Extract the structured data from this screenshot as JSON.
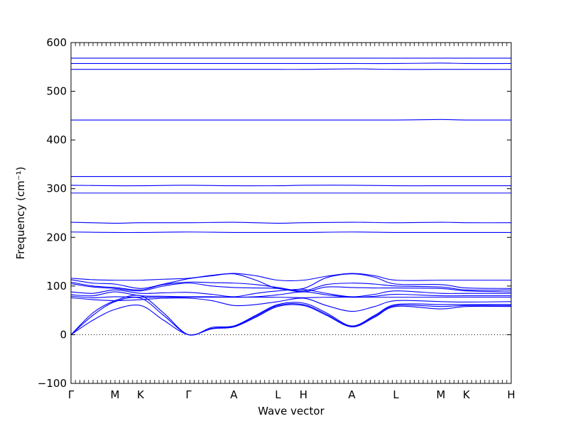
{
  "chart_data": {
    "type": "line",
    "xlabel": "Wave vector",
    "ylabel": "Frequency (cm⁻¹)",
    "ylim": [
      -100,
      600
    ],
    "xlim": [
      0,
      10
    ],
    "y_ticks": [
      -100,
      0,
      100,
      200,
      300,
      400,
      500,
      600
    ],
    "x_ticks": [
      {
        "label": "Γ",
        "x": 0
      },
      {
        "label": "M",
        "x": 1
      },
      {
        "label": "K",
        "x": 1.58
      },
      {
        "label": "Γ",
        "x": 2.67
      },
      {
        "label": "A",
        "x": 3.7
      },
      {
        "label": "L",
        "x": 4.7
      },
      {
        "label": "H",
        "x": 5.28
      },
      {
        "label": "A",
        "x": 6.38
      },
      {
        "label": "L",
        "x": 7.38
      },
      {
        "label": "M",
        "x": 8.4
      },
      {
        "label": "K",
        "x": 8.98
      },
      {
        "label": "H",
        "x": 10
      }
    ],
    "zero_line": {
      "y": 0,
      "style": "dotted"
    },
    "line_color": "#0000ff",
    "series": [
      {
        "x": [
          0,
          1,
          1.58,
          2.67,
          3.7,
          4.7,
          5.28,
          6.38,
          7.38,
          8.4,
          8.98,
          10
        ],
        "y": [
          568,
          568,
          568,
          568,
          568,
          568,
          568,
          568,
          568,
          568,
          568,
          568
        ]
      },
      {
        "x": [
          0,
          1,
          1.58,
          2.67,
          3.7,
          4.7,
          5.28,
          6.38,
          7.38,
          8.4,
          8.98,
          10
        ],
        "y": [
          557,
          557,
          557,
          557,
          557,
          557,
          557,
          557,
          557,
          558,
          557,
          557
        ]
      },
      {
        "x": [
          0,
          1,
          1.58,
          2.67,
          3.7,
          4.7,
          5.28,
          6.38,
          7.38,
          8.4,
          8.98,
          10
        ],
        "y": [
          545,
          545,
          545,
          545,
          545,
          545,
          545,
          546,
          545,
          545,
          545,
          545
        ]
      },
      {
        "x": [
          0,
          1,
          1.58,
          2.67,
          3.7,
          4.7,
          5.28,
          6.38,
          7.38,
          8.4,
          8.98,
          10
        ],
        "y": [
          441,
          441,
          441,
          441,
          441,
          441,
          441,
          441,
          441,
          442,
          441,
          441
        ]
      },
      {
        "x": [
          0,
          1,
          1.58,
          2.67,
          3.7,
          4.7,
          5.28,
          6.38,
          7.38,
          8.4,
          8.98,
          10
        ],
        "y": [
          325,
          325,
          325,
          325,
          325,
          325,
          325,
          325,
          325,
          325,
          325,
          325
        ]
      },
      {
        "x": [
          0,
          1,
          1.58,
          2.67,
          3.7,
          4.7,
          5.28,
          6.38,
          7.38,
          8.4,
          8.98,
          10
        ],
        "y": [
          307,
          306,
          306,
          307,
          306,
          306,
          307,
          307,
          306,
          306,
          306,
          306
        ]
      },
      {
        "x": [
          0,
          1,
          1.58,
          2.67,
          3.7,
          4.7,
          5.28,
          6.38,
          7.38,
          8.4,
          8.98,
          10
        ],
        "y": [
          291,
          291,
          291,
          291,
          291,
          291,
          291,
          291,
          291,
          291,
          291,
          291
        ]
      },
      {
        "x": [
          0,
          1,
          1.58,
          2.67,
          3.7,
          4.7,
          5.28,
          6.38,
          7.38,
          8.4,
          8.98,
          10
        ],
        "y": [
          231,
          229,
          230,
          230,
          231,
          229,
          230,
          231,
          230,
          231,
          230,
          230
        ]
      },
      {
        "x": [
          0,
          1,
          1.58,
          2.67,
          3.7,
          4.7,
          5.28,
          6.38,
          7.38,
          8.4,
          8.98,
          10
        ],
        "y": [
          211,
          210,
          210,
          211,
          210,
          210,
          210,
          211,
          210,
          210,
          210,
          210
        ]
      },
      {
        "x": [
          0,
          0.5,
          1,
          1.58,
          2.1,
          2.67,
          3.2,
          3.7,
          4.2,
          4.7,
          5.28,
          5.8,
          6.38,
          6.9,
          7.38,
          8.4,
          8.98,
          10
        ],
        "y": [
          116,
          113,
          112,
          112,
          114,
          116,
          122,
          126,
          121,
          112,
          112,
          120,
          126,
          121,
          112,
          112,
          112,
          112
        ]
      },
      {
        "x": [
          0,
          0.5,
          1,
          1.58,
          2.1,
          2.67,
          3.2,
          3.7,
          4.2,
          4.7,
          5.28,
          5.8,
          6.38,
          6.9,
          7.38,
          8.4,
          8.98,
          10
        ],
        "y": [
          113,
          106,
          104,
          95,
          104,
          115,
          121,
          125,
          112,
          95,
          95,
          117,
          125,
          118,
          104,
          103,
          96,
          95
        ]
      },
      {
        "x": [
          0,
          0.5,
          1,
          1.58,
          2.1,
          2.67,
          3.2,
          3.7,
          4.2,
          4.7,
          5.28,
          5.8,
          6.38,
          6.9,
          7.38,
          8.4,
          8.98,
          10
        ],
        "y": [
          108,
          100,
          97,
          92,
          103,
          108,
          107,
          106,
          103,
          97,
          90,
          103,
          106,
          104,
          100,
          98,
          92,
          92
        ]
      },
      {
        "x": [
          0,
          0.5,
          1,
          1.58,
          2.1,
          2.67,
          3.2,
          3.7,
          4.2,
          4.7,
          5.28,
          5.8,
          6.38,
          6.9,
          7.38,
          8.4,
          8.98,
          10
        ],
        "y": [
          105,
          98,
          95,
          90,
          100,
          106,
          100,
          97,
          96,
          95,
          88,
          98,
          97,
          96,
          96,
          95,
          90,
          88
        ]
      },
      {
        "x": [
          0,
          0.5,
          1,
          1.58,
          2.1,
          2.67,
          3.2,
          3.7,
          4.2,
          4.7,
          5.28,
          5.8,
          6.38,
          6.9,
          7.38,
          8.4,
          8.98,
          10
        ],
        "y": [
          88,
          85,
          92,
          85,
          86,
          87,
          83,
          78,
          85,
          90,
          93,
          85,
          78,
          83,
          90,
          85,
          85,
          85
        ]
      },
      {
        "x": [
          0,
          0.5,
          1,
          1.58,
          2.1,
          2.67,
          3.2,
          3.7,
          4.2,
          4.7,
          5.28,
          5.8,
          6.38,
          6.9,
          7.38,
          8.4,
          8.98,
          10
        ],
        "y": [
          82,
          80,
          88,
          80,
          79,
          78,
          78,
          77,
          78,
          82,
          88,
          82,
          77,
          79,
          83,
          80,
          80,
          80
        ]
      },
      {
        "x": [
          0,
          0.5,
          1,
          1.58,
          2.1,
          2.67,
          3.2,
          3.7,
          4.2,
          4.7,
          5.28,
          5.8,
          6.38,
          6.9,
          7.38,
          8.4,
          8.98,
          10
        ],
        "y": [
          79,
          76,
          78,
          77,
          77,
          77,
          77,
          77,
          77,
          77,
          76,
          77,
          77,
          77,
          77,
          77,
          77,
          77
        ]
      },
      {
        "x": [
          0,
          0.5,
          1,
          1.58,
          2.1,
          2.67,
          3.2,
          3.7,
          4.2,
          4.7,
          5.28,
          5.8,
          6.38,
          6.9,
          7.38,
          8.4,
          8.98,
          10
        ],
        "y": [
          76,
          72,
          70,
          72,
          75,
          75,
          70,
          60,
          62,
          68,
          75,
          60,
          48,
          58,
          70,
          68,
          67,
          68
        ]
      },
      {
        "x": [
          0,
          0.5,
          1,
          1.58,
          2.1,
          2.67,
          3.2,
          3.7,
          4.2,
          4.7,
          5.28,
          5.8,
          6.38,
          6.9,
          7.38,
          8.4,
          8.98,
          10
        ],
        "y": [
          0,
          45,
          70,
          80,
          45,
          0,
          15,
          18,
          40,
          62,
          65,
          45,
          18,
          40,
          62,
          62,
          62,
          62
        ]
      },
      {
        "x": [
          0,
          0.5,
          1,
          1.58,
          2.1,
          2.67,
          3.2,
          3.7,
          4.2,
          4.7,
          5.28,
          5.8,
          6.38,
          6.9,
          7.38,
          8.4,
          8.98,
          10
        ],
        "y": [
          0,
          40,
          68,
          75,
          40,
          0,
          13,
          17,
          38,
          60,
          62,
          42,
          17,
          38,
          60,
          58,
          60,
          60
        ]
      },
      {
        "x": [
          0,
          0.5,
          1,
          1.58,
          2.1,
          2.67,
          3.2,
          3.7,
          4.2,
          4.7,
          5.28,
          5.8,
          6.38,
          6.9,
          7.38,
          8.4,
          8.98,
          10
        ],
        "y": [
          0,
          30,
          52,
          60,
          30,
          0,
          12,
          16,
          36,
          58,
          60,
          40,
          16,
          36,
          58,
          53,
          58,
          58
        ]
      }
    ]
  }
}
